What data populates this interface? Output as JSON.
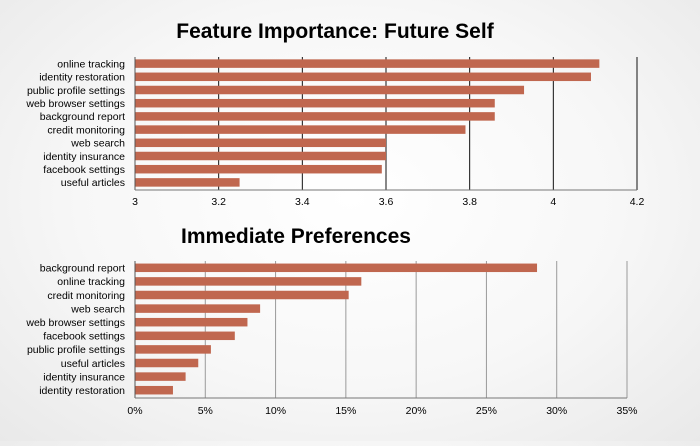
{
  "chart_data": [
    {
      "type": "bar",
      "orientation": "horizontal",
      "title": "Feature Importance: Future Self",
      "xlabel": "",
      "ylabel": "",
      "xlim": [
        3,
        4.2
      ],
      "ticks": [
        3,
        3.2,
        3.4,
        3.6,
        3.8,
        4,
        4.2
      ],
      "tick_labels": [
        "3",
        "3.2",
        "3.4",
        "3.6",
        "3.8",
        "4",
        "4.2"
      ],
      "grid": true,
      "legend": "none",
      "bar_color": "#C0674F",
      "categories": [
        "online tracking",
        "identity restoration",
        "public profile settings",
        "web browser settings",
        "background report",
        "credit monitoring",
        "web search",
        "identity insurance",
        "facebook settings",
        "useful articles"
      ],
      "values": [
        4.11,
        4.09,
        3.93,
        3.86,
        3.86,
        3.79,
        3.6,
        3.6,
        3.59,
        3.25
      ]
    },
    {
      "type": "bar",
      "orientation": "horizontal",
      "title": "Immediate Preferences",
      "xlabel": "",
      "ylabel": "",
      "xlim": [
        0,
        0.35
      ],
      "ticks": [
        0,
        0.05,
        0.1,
        0.15,
        0.2,
        0.25,
        0.3,
        0.35
      ],
      "tick_labels": [
        "0%",
        "5%",
        "10%",
        "15%",
        "20%",
        "25%",
        "30%",
        "35%"
      ],
      "grid": true,
      "legend": "none",
      "bar_color": "#C0674F",
      "categories": [
        "background report",
        "online tracking",
        "credit monitoring",
        "web search",
        "web browser settings",
        "facebook settings",
        "public profile settings",
        "useful articles",
        "identity insurance",
        "identity restoration"
      ],
      "values": [
        0.286,
        0.161,
        0.152,
        0.089,
        0.08,
        0.071,
        0.054,
        0.045,
        0.036,
        0.027
      ]
    }
  ]
}
